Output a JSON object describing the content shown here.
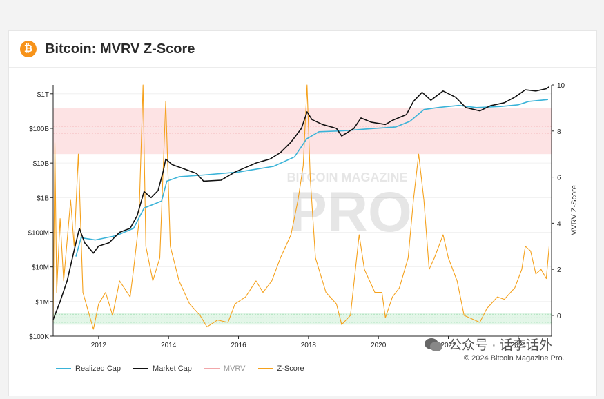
{
  "header": {
    "title": "Bitcoin: MVRV Z-Score",
    "logo_glyph": "₿"
  },
  "watermark": {
    "line1": "BITCOIN MAGAZINE",
    "line2": "PRO"
  },
  "wechat": {
    "text": "公众号 · 话李话外"
  },
  "copyright": "© 2024 Bitcoin Magazine Pro.",
  "colors": {
    "realized_cap": "#3ab3d8",
    "market_cap": "#111111",
    "mvrv": "#f2a7aa",
    "z_score": "#f5a11c",
    "top_band": "#fde3e4",
    "bottom_band": "#e3f6e8",
    "brand": "#f7931a"
  },
  "chart_data": {
    "type": "line",
    "title": "Bitcoin: MVRV Z-Score",
    "xlim": [
      2010.7,
      2024.95
    ],
    "x_ticks": [
      2012,
      2014,
      2016,
      2018,
      2020,
      2022,
      2024
    ],
    "left_axis": {
      "scale": "log",
      "ticks": [
        {
          "value": 100000.0,
          "label": "$100K"
        },
        {
          "value": 1000000.0,
          "label": "$1M"
        },
        {
          "value": 10000000.0,
          "label": "$10M"
        },
        {
          "value": 100000000.0,
          "label": "$100M"
        },
        {
          "value": 1000000000.0,
          "label": "$1B"
        },
        {
          "value": 10000000000.0,
          "label": "$10B"
        },
        {
          "value": 100000000000.0,
          "label": "$100B"
        },
        {
          "value": 1000000000000.0,
          "label": "$1T"
        }
      ],
      "range": [
        100000.0,
        1800000000000.0
      ]
    },
    "right_axis": {
      "label": "MVRV Z-Score",
      "ticks": [
        0,
        2,
        4,
        6,
        8,
        10
      ],
      "range": [
        -0.9,
        10
      ]
    },
    "bands": [
      {
        "name": "top",
        "from": 7,
        "to": 9
      },
      {
        "name": "bottom",
        "from": -0.4,
        "to": 0.1
      }
    ],
    "legend": [
      "Realized Cap",
      "Market Cap",
      "MVRV",
      "Z-Score"
    ],
    "series": [
      {
        "name": "Market Cap",
        "axis": "left",
        "points": [
          [
            2010.7,
            300000.0
          ],
          [
            2010.9,
            1000000.0
          ],
          [
            2011.1,
            4000000.0
          ],
          [
            2011.3,
            30000000.0
          ],
          [
            2011.45,
            130000000.0
          ],
          [
            2011.6,
            50000000.0
          ],
          [
            2011.85,
            25000000.0
          ],
          [
            2012.0,
            40000000.0
          ],
          [
            2012.3,
            50000000.0
          ],
          [
            2012.6,
            100000000.0
          ],
          [
            2012.9,
            130000000.0
          ],
          [
            2013.1,
            300000000.0
          ],
          [
            2013.3,
            1500000000.0
          ],
          [
            2013.5,
            1000000000.0
          ],
          [
            2013.7,
            1600000000.0
          ],
          [
            2013.85,
            6000000000.0
          ],
          [
            2013.92,
            13000000000.0
          ],
          [
            2014.1,
            9000000000.0
          ],
          [
            2014.4,
            7000000000.0
          ],
          [
            2014.8,
            5000000000.0
          ],
          [
            2015.0,
            3000000000.0
          ],
          [
            2015.5,
            3200000000.0
          ],
          [
            2015.9,
            5500000000.0
          ],
          [
            2016.5,
            10000000000.0
          ],
          [
            2016.9,
            13000000000.0
          ],
          [
            2017.2,
            20000000000.0
          ],
          [
            2017.5,
            40000000000.0
          ],
          [
            2017.8,
            100000000000.0
          ],
          [
            2017.96,
            300000000000.0
          ],
          [
            2018.1,
            180000000000.0
          ],
          [
            2018.4,
            130000000000.0
          ],
          [
            2018.8,
            100000000000.0
          ],
          [
            2018.95,
            60000000000.0
          ],
          [
            2019.3,
            100000000000.0
          ],
          [
            2019.5,
            200000000000.0
          ],
          [
            2019.8,
            150000000000.0
          ],
          [
            2020.2,
            130000000000.0
          ],
          [
            2020.4,
            170000000000.0
          ],
          [
            2020.8,
            250000000000.0
          ],
          [
            2021.0,
            600000000000.0
          ],
          [
            2021.25,
            1100000000000.0
          ],
          [
            2021.5,
            650000000000.0
          ],
          [
            2021.85,
            1200000000000.0
          ],
          [
            2022.2,
            800000000000.0
          ],
          [
            2022.5,
            400000000000.0
          ],
          [
            2022.9,
            320000000000.0
          ],
          [
            2023.2,
            450000000000.0
          ],
          [
            2023.6,
            550000000000.0
          ],
          [
            2023.9,
            800000000000.0
          ],
          [
            2024.2,
            1300000000000.0
          ],
          [
            2024.5,
            1200000000000.0
          ],
          [
            2024.8,
            1400000000000.0
          ],
          [
            2024.88,
            1600000000000.0
          ]
        ]
      },
      {
        "name": "Realized Cap",
        "axis": "left",
        "points": [
          [
            2011.35,
            20000000.0
          ],
          [
            2011.5,
            70000000.0
          ],
          [
            2011.9,
            60000000.0
          ],
          [
            2012.5,
            80000000.0
          ],
          [
            2013.0,
            130000000.0
          ],
          [
            2013.3,
            500000000.0
          ],
          [
            2013.8,
            800000000.0
          ],
          [
            2013.95,
            3000000000.0
          ],
          [
            2014.3,
            4000000000.0
          ],
          [
            2015.0,
            4500000000.0
          ],
          [
            2016.0,
            5500000000.0
          ],
          [
            2017.0,
            8000000000.0
          ],
          [
            2017.6,
            15000000000.0
          ],
          [
            2017.95,
            50000000000.0
          ],
          [
            2018.3,
            80000000000.0
          ],
          [
            2019.0,
            85000000000.0
          ],
          [
            2019.6,
            95000000000.0
          ],
          [
            2020.5,
            110000000000.0
          ],
          [
            2020.9,
            160000000000.0
          ],
          [
            2021.3,
            350000000000.0
          ],
          [
            2021.7,
            400000000000.0
          ],
          [
            2022.3,
            460000000000.0
          ],
          [
            2022.8,
            400000000000.0
          ],
          [
            2023.5,
            430000000000.0
          ],
          [
            2024.0,
            480000000000.0
          ],
          [
            2024.3,
            600000000000.0
          ],
          [
            2024.85,
            680000000000.0
          ]
        ]
      },
      {
        "name": "Z-Score",
        "axis": "right",
        "points": [
          [
            2010.7,
            -0.3
          ],
          [
            2010.75,
            7.5
          ],
          [
            2010.8,
            1
          ],
          [
            2010.9,
            4.2
          ],
          [
            2011.0,
            1.5
          ],
          [
            2011.2,
            5
          ],
          [
            2011.3,
            3
          ],
          [
            2011.42,
            7
          ],
          [
            2011.55,
            1
          ],
          [
            2011.7,
            0.2
          ],
          [
            2011.85,
            -0.6
          ],
          [
            2012.0,
            0.5
          ],
          [
            2012.2,
            1
          ],
          [
            2012.4,
            0
          ],
          [
            2012.6,
            1.5
          ],
          [
            2012.9,
            0.8
          ],
          [
            2013.0,
            2
          ],
          [
            2013.15,
            4
          ],
          [
            2013.27,
            10
          ],
          [
            2013.35,
            3
          ],
          [
            2013.55,
            1.5
          ],
          [
            2013.75,
            2.5
          ],
          [
            2013.92,
            9.3
          ],
          [
            2014.05,
            3
          ],
          [
            2014.3,
            1.5
          ],
          [
            2014.6,
            0.5
          ],
          [
            2014.9,
            0
          ],
          [
            2015.1,
            -0.5
          ],
          [
            2015.4,
            -0.2
          ],
          [
            2015.7,
            -0.3
          ],
          [
            2015.9,
            0.5
          ],
          [
            2016.2,
            0.8
          ],
          [
            2016.5,
            1.5
          ],
          [
            2016.7,
            1
          ],
          [
            2016.95,
            1.5
          ],
          [
            2017.2,
            2.5
          ],
          [
            2017.5,
            3.5
          ],
          [
            2017.7,
            5
          ],
          [
            2017.85,
            6.5
          ],
          [
            2017.96,
            10
          ],
          [
            2018.05,
            6
          ],
          [
            2018.2,
            2.5
          ],
          [
            2018.5,
            1
          ],
          [
            2018.8,
            0.5
          ],
          [
            2018.95,
            -0.4
          ],
          [
            2019.2,
            0
          ],
          [
            2019.45,
            3.5
          ],
          [
            2019.6,
            2
          ],
          [
            2019.9,
            1
          ],
          [
            2020.1,
            1
          ],
          [
            2020.2,
            -0.1
          ],
          [
            2020.4,
            0.8
          ],
          [
            2020.6,
            1.2
          ],
          [
            2020.85,
            2.5
          ],
          [
            2021.0,
            5
          ],
          [
            2021.15,
            7
          ],
          [
            2021.3,
            5
          ],
          [
            2021.45,
            2
          ],
          [
            2021.6,
            2.5
          ],
          [
            2021.85,
            3.5
          ],
          [
            2022.0,
            2.5
          ],
          [
            2022.25,
            1.5
          ],
          [
            2022.45,
            0
          ],
          [
            2022.6,
            -0.1
          ],
          [
            2022.9,
            -0.3
          ],
          [
            2023.1,
            0.3
          ],
          [
            2023.4,
            0.8
          ],
          [
            2023.6,
            0.7
          ],
          [
            2023.9,
            1.2
          ],
          [
            2024.1,
            2
          ],
          [
            2024.2,
            3
          ],
          [
            2024.35,
            2.8
          ],
          [
            2024.5,
            1.8
          ],
          [
            2024.65,
            2
          ],
          [
            2024.8,
            1.6
          ],
          [
            2024.88,
            3
          ]
        ]
      }
    ]
  }
}
